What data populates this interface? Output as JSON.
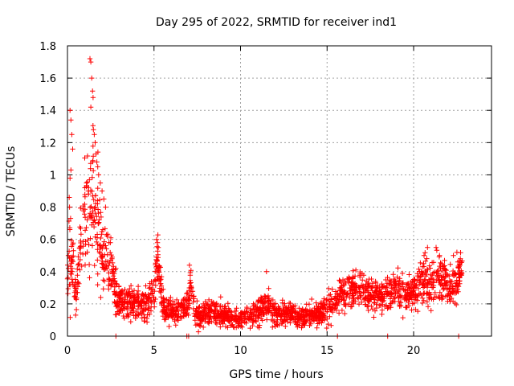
{
  "chart_data": {
    "type": "scatter",
    "title": "Day 295 of 2022, SRMTID for receiver ind1",
    "xlabel": "GPS time / hours",
    "ylabel": "SRMTID / TECUs",
    "xlim": [
      0,
      24.5
    ],
    "ylim": [
      0,
      1.8
    ],
    "x_ticks": [
      0,
      5,
      10,
      15,
      20
    ],
    "y_ticks": [
      0,
      0.2,
      0.4,
      0.6,
      0.8,
      1,
      1.2,
      1.4,
      1.6,
      1.8
    ],
    "x_tick_labels": [
      "0",
      "5",
      "10",
      "15",
      "20"
    ],
    "y_tick_labels": [
      "0",
      "0.2",
      "0.4",
      "0.6",
      "0.8",
      "1",
      "1.2",
      "1.4",
      "1.6",
      "1.8"
    ],
    "grid": true,
    "marker": "+",
    "color": "#ff0000",
    "series": [
      {
        "name": "ind1",
        "profile": [
          [
            0.0,
            0.36,
            0.06
          ],
          [
            0.1,
            0.55,
            0.3
          ],
          [
            0.2,
            0.45,
            0.15
          ],
          [
            0.35,
            0.4,
            0.12
          ],
          [
            0.5,
            0.25,
            0.06
          ],
          [
            0.7,
            0.5,
            0.15
          ],
          [
            0.9,
            0.65,
            0.2
          ],
          [
            1.1,
            0.85,
            0.25
          ],
          [
            1.3,
            0.75,
            0.3
          ],
          [
            1.45,
            1.0,
            0.35
          ],
          [
            1.6,
            0.7,
            0.3
          ],
          [
            1.8,
            0.75,
            0.25
          ],
          [
            2.0,
            0.45,
            0.15
          ],
          [
            2.2,
            0.5,
            0.15
          ],
          [
            2.5,
            0.45,
            0.12
          ],
          [
            2.8,
            0.25,
            0.08
          ],
          [
            3.2,
            0.2,
            0.07
          ],
          [
            3.6,
            0.22,
            0.08
          ],
          [
            4.0,
            0.2,
            0.07
          ],
          [
            4.5,
            0.2,
            0.07
          ],
          [
            5.0,
            0.25,
            0.1
          ],
          [
            5.2,
            0.5,
            0.08
          ],
          [
            5.5,
            0.18,
            0.06
          ],
          [
            6.0,
            0.15,
            0.05
          ],
          [
            6.5,
            0.15,
            0.05
          ],
          [
            7.0,
            0.2,
            0.06
          ],
          [
            7.1,
            0.38,
            0.06
          ],
          [
            7.4,
            0.12,
            0.05
          ],
          [
            8.0,
            0.14,
            0.05
          ],
          [
            8.5,
            0.15,
            0.05
          ],
          [
            9.0,
            0.13,
            0.05
          ],
          [
            9.5,
            0.12,
            0.05
          ],
          [
            10.0,
            0.11,
            0.04
          ],
          [
            10.5,
            0.13,
            0.05
          ],
          [
            11.0,
            0.15,
            0.05
          ],
          [
            11.5,
            0.2,
            0.07
          ],
          [
            12.0,
            0.13,
            0.05
          ],
          [
            12.5,
            0.13,
            0.05
          ],
          [
            13.0,
            0.13,
            0.05
          ],
          [
            13.5,
            0.12,
            0.05
          ],
          [
            14.0,
            0.14,
            0.05
          ],
          [
            14.5,
            0.13,
            0.05
          ],
          [
            15.0,
            0.17,
            0.06
          ],
          [
            15.5,
            0.22,
            0.07
          ],
          [
            16.0,
            0.26,
            0.07
          ],
          [
            16.5,
            0.3,
            0.08
          ],
          [
            17.0,
            0.28,
            0.08
          ],
          [
            17.5,
            0.26,
            0.07
          ],
          [
            18.0,
            0.25,
            0.07
          ],
          [
            18.5,
            0.27,
            0.08
          ],
          [
            19.0,
            0.3,
            0.08
          ],
          [
            19.5,
            0.26,
            0.07
          ],
          [
            20.0,
            0.3,
            0.08
          ],
          [
            20.5,
            0.33,
            0.1
          ],
          [
            21.0,
            0.34,
            0.1
          ],
          [
            21.5,
            0.36,
            0.1
          ],
          [
            22.0,
            0.3,
            0.08
          ],
          [
            22.5,
            0.35,
            0.1
          ],
          [
            22.8,
            0.4,
            0.08
          ]
        ],
        "peaks": [
          [
            1.3,
            1.72
          ],
          [
            1.35,
            1.7
          ],
          [
            1.4,
            1.6
          ],
          [
            1.45,
            1.52
          ],
          [
            1.35,
            1.42
          ],
          [
            1.5,
            1.28
          ],
          [
            1.55,
            1.25
          ],
          [
            1.6,
            1.2
          ],
          [
            1.65,
            1.13
          ],
          [
            1.7,
            1.08
          ],
          [
            1.75,
            1.05
          ],
          [
            1.8,
            1.0
          ],
          [
            1.9,
            0.95
          ],
          [
            0.15,
            1.4
          ],
          [
            0.2,
            1.34
          ],
          [
            0.25,
            1.25
          ],
          [
            0.3,
            1.16
          ],
          [
            0.2,
            1.03
          ],
          [
            0.15,
            0.98
          ],
          [
            0.1,
            0.86
          ],
          [
            0.12,
            0.8
          ],
          [
            0.18,
            0.73
          ],
          [
            1.0,
            0.92
          ],
          [
            1.1,
            0.95
          ],
          [
            1.2,
            0.9
          ],
          [
            2.0,
            0.9
          ],
          [
            2.1,
            0.85
          ],
          [
            2.2,
            0.8
          ],
          [
            2.3,
            0.62
          ],
          [
            2.4,
            0.58
          ],
          [
            5.15,
            0.6
          ],
          [
            5.2,
            0.58
          ],
          [
            5.25,
            0.55
          ],
          [
            7.05,
            0.44
          ],
          [
            11.5,
            0.4
          ],
          [
            20.6,
            0.5
          ],
          [
            20.8,
            0.55
          ],
          [
            21.3,
            0.55
          ],
          [
            21.5,
            0.5
          ],
          [
            22.3,
            0.5
          ],
          [
            22.5,
            0.52
          ],
          [
            22.7,
            0.48
          ],
          [
            2.6,
            0.4
          ],
          [
            2.8,
            0.42
          ],
          [
            0.05,
            0.42
          ]
        ],
        "zeros": [
          2.8,
          6.9,
          7.0,
          15.6,
          18.5,
          22.6
        ]
      }
    ]
  }
}
